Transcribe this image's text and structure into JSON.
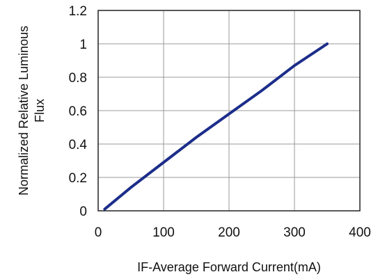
{
  "chart_data": {
    "type": "line",
    "xlabel": "IF-Average Forward Current(mA)",
    "ylabel_line1": "Normalized Relative Luminous",
    "ylabel_line2": "Flux",
    "xlim": [
      0,
      400
    ],
    "ylim": [
      0,
      1.2
    ],
    "x_ticks": [
      "0",
      "100",
      "200",
      "300",
      "400"
    ],
    "y_ticks": [
      "0",
      "0.2",
      "0.4",
      "0.6",
      "0.8",
      "1",
      "1.2"
    ],
    "grid": true,
    "series": [
      {
        "x": [
          10,
          50,
          100,
          150,
          200,
          250,
          300,
          350
        ],
        "values": [
          0.01,
          0.14,
          0.29,
          0.44,
          0.58,
          0.72,
          0.87,
          1.0
        ]
      }
    ]
  },
  "colors": {
    "series": "#1c2d8a",
    "grid": "#9a9a9a",
    "frame": "#222222"
  }
}
